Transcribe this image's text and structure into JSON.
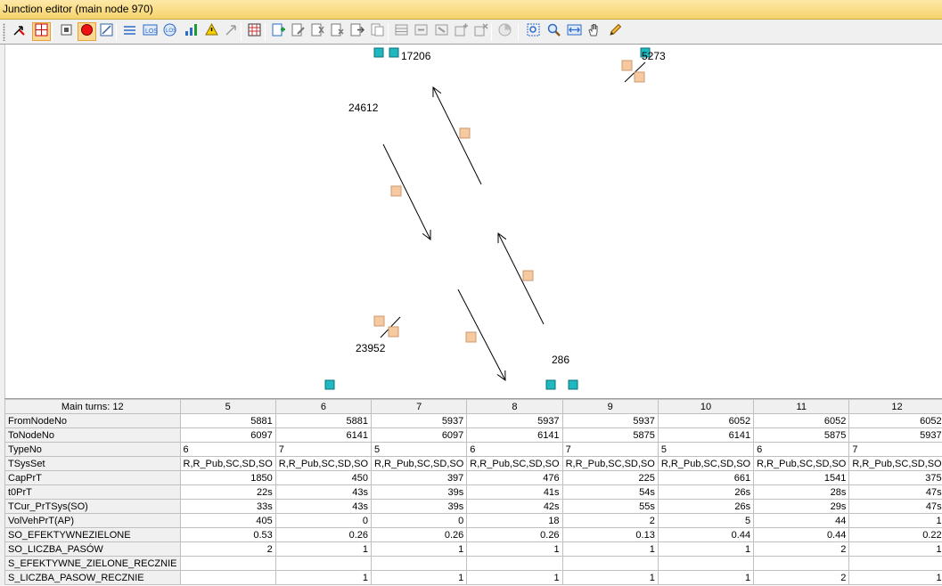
{
  "window": {
    "title": "Junction editor (main node 970)"
  },
  "toolbar": {
    "buttons": [
      {
        "name": "select-arrow-icon",
        "active": false
      },
      {
        "name": "junction-view-icon",
        "active": true
      },
      {
        "name": "node-icon",
        "active": false
      },
      {
        "name": "record-icon",
        "active": true
      },
      {
        "name": "edit-area-icon",
        "active": false
      },
      {
        "name": "lane-icon",
        "active": false
      },
      {
        "name": "los-icon",
        "active": false
      },
      {
        "name": "signal-icon",
        "active": false
      },
      {
        "name": "chart-icon",
        "active": false
      },
      {
        "name": "warning-icon",
        "active": false
      },
      {
        "name": "arrow-icon",
        "active": false
      },
      {
        "name": "table-icon",
        "active": false
      },
      {
        "name": "add-icon",
        "active": false
      },
      {
        "name": "edit-icon",
        "active": false
      },
      {
        "name": "split-icon",
        "active": false
      },
      {
        "name": "delete-icon",
        "active": false
      },
      {
        "name": "move-icon",
        "active": false
      },
      {
        "name": "copy-icon",
        "active": false
      },
      {
        "name": "grid-a-icon",
        "active": false
      },
      {
        "name": "grid-b-icon",
        "active": false
      },
      {
        "name": "grid-c-icon",
        "active": false
      },
      {
        "name": "grid-d-icon",
        "active": false
      },
      {
        "name": "grid-e-icon",
        "active": false
      },
      {
        "name": "circle-icon",
        "active": false
      },
      {
        "name": "zoom-area-icon",
        "active": false
      },
      {
        "name": "zoom-icon",
        "active": false
      },
      {
        "name": "fit-icon",
        "active": false
      },
      {
        "name": "pan-hand-icon",
        "active": false
      },
      {
        "name": "pencil-icon",
        "active": false
      }
    ]
  },
  "diagram": {
    "node_labels": [
      {
        "id": "17206"
      },
      {
        "id": "5273"
      },
      {
        "id": "24612"
      },
      {
        "id": "23952"
      },
      {
        "id": "286"
      }
    ],
    "link_color": "#f7c9a0",
    "node_color": "#1fb8c0"
  },
  "grid": {
    "corner_label": "Main turns: 12",
    "columns": [
      "5",
      "6",
      "7",
      "8",
      "9",
      "10",
      "11",
      "12"
    ],
    "rows": [
      {
        "label": "FromNodeNo",
        "align": "num",
        "cells": [
          "5881",
          "5881",
          "5937",
          "5937",
          "5937",
          "6052",
          "6052",
          "6052"
        ]
      },
      {
        "label": "ToNodeNo",
        "align": "num",
        "cells": [
          "6097",
          "6141",
          "6097",
          "6141",
          "5875",
          "6141",
          "5875",
          "5937"
        ]
      },
      {
        "label": "TypeNo",
        "align": "txt",
        "cells": [
          "6",
          "7",
          "5",
          "6",
          "7",
          "5",
          "6",
          "7"
        ]
      },
      {
        "label": "TSysSet",
        "align": "txt",
        "cells": [
          "R,R_Pub,SC,SD,SO",
          "R,R_Pub,SC,SD,SO",
          "R,R_Pub,SC,SD,SO",
          "R,R_Pub,SC,SD,SO",
          "R,R_Pub,SC,SD,SO",
          "R,R_Pub,SC,SD,SO",
          "R,R_Pub,SC,SD,SO",
          "R,R_Pub,SC,SD,SO"
        ]
      },
      {
        "label": "CapPrT",
        "align": "num",
        "cells": [
          "1850",
          "450",
          "397",
          "476",
          "225",
          "661",
          "1541",
          "375"
        ]
      },
      {
        "label": "t0PrT",
        "align": "num",
        "cells": [
          "22s",
          "43s",
          "39s",
          "41s",
          "54s",
          "26s",
          "28s",
          "47s"
        ]
      },
      {
        "label": "TCur_PrTSys(SO)",
        "align": "num",
        "cells": [
          "33s",
          "43s",
          "39s",
          "42s",
          "55s",
          "26s",
          "29s",
          "47s"
        ]
      },
      {
        "label": "VolVehPrT(AP)",
        "align": "num",
        "cells": [
          "405",
          "0",
          "0",
          "18",
          "2",
          "5",
          "44",
          "1"
        ]
      },
      {
        "label": "SO_EFEKTYWNEZIELONE",
        "align": "num",
        "cells": [
          "0.53",
          "0.26",
          "0.26",
          "0.26",
          "0.13",
          "0.44",
          "0.44",
          "0.22"
        ]
      },
      {
        "label": "SO_LICZBA_PASÓW",
        "align": "num",
        "cells": [
          "2",
          "1",
          "1",
          "1",
          "1",
          "1",
          "2",
          "1"
        ]
      },
      {
        "label": "S_EFEKTYWNE_ZIELONE_RECZNIE",
        "align": "num",
        "cells": [
          "",
          "",
          "",
          "",
          "",
          "",
          "",
          ""
        ]
      },
      {
        "label": "S_LICZBA_PASOW_RECZNIE",
        "align": "num",
        "cells": [
          "",
          "1",
          "1",
          "1",
          "1",
          "1",
          "2",
          "1"
        ]
      }
    ]
  }
}
